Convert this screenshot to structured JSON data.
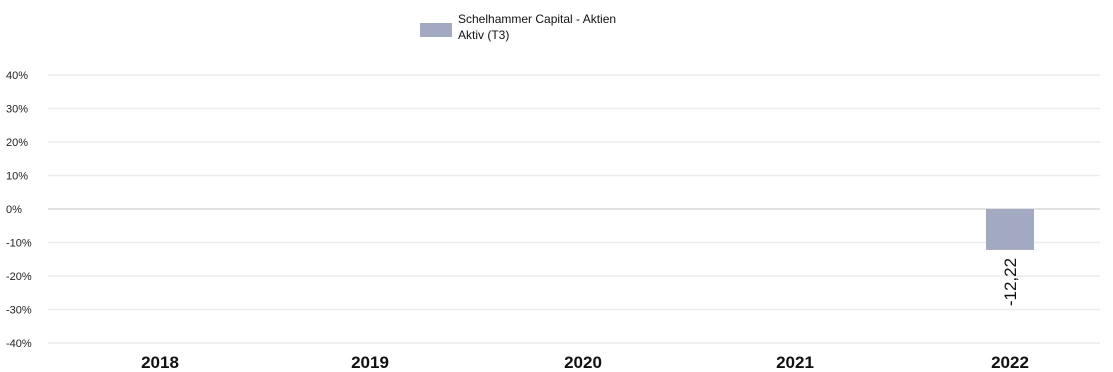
{
  "chart_data": {
    "type": "bar",
    "categories": [
      "2018",
      "2019",
      "2020",
      "2021",
      "2022"
    ],
    "series": [
      {
        "name": "Schelhammer Capital - Aktien Aktiv (T3)",
        "legend_lines": [
          "Schelhammer Capital - Aktien",
          "Aktiv (T3)"
        ],
        "color": "#a3a9c1",
        "values": [
          null,
          null,
          null,
          null,
          -12.22
        ],
        "data_labels": [
          "",
          "",
          "",
          "",
          "-12,22"
        ]
      }
    ],
    "y_ticks": [
      "40%",
      "30%",
      "20%",
      "10%",
      "0%",
      "-10%",
      "-20%",
      "-30%",
      "-40%"
    ],
    "y_tick_values": [
      40,
      30,
      20,
      10,
      0,
      -10,
      -20,
      -30,
      -40
    ],
    "ylim": [
      -40,
      40
    ],
    "grid": true,
    "legend_position": "top-center"
  }
}
